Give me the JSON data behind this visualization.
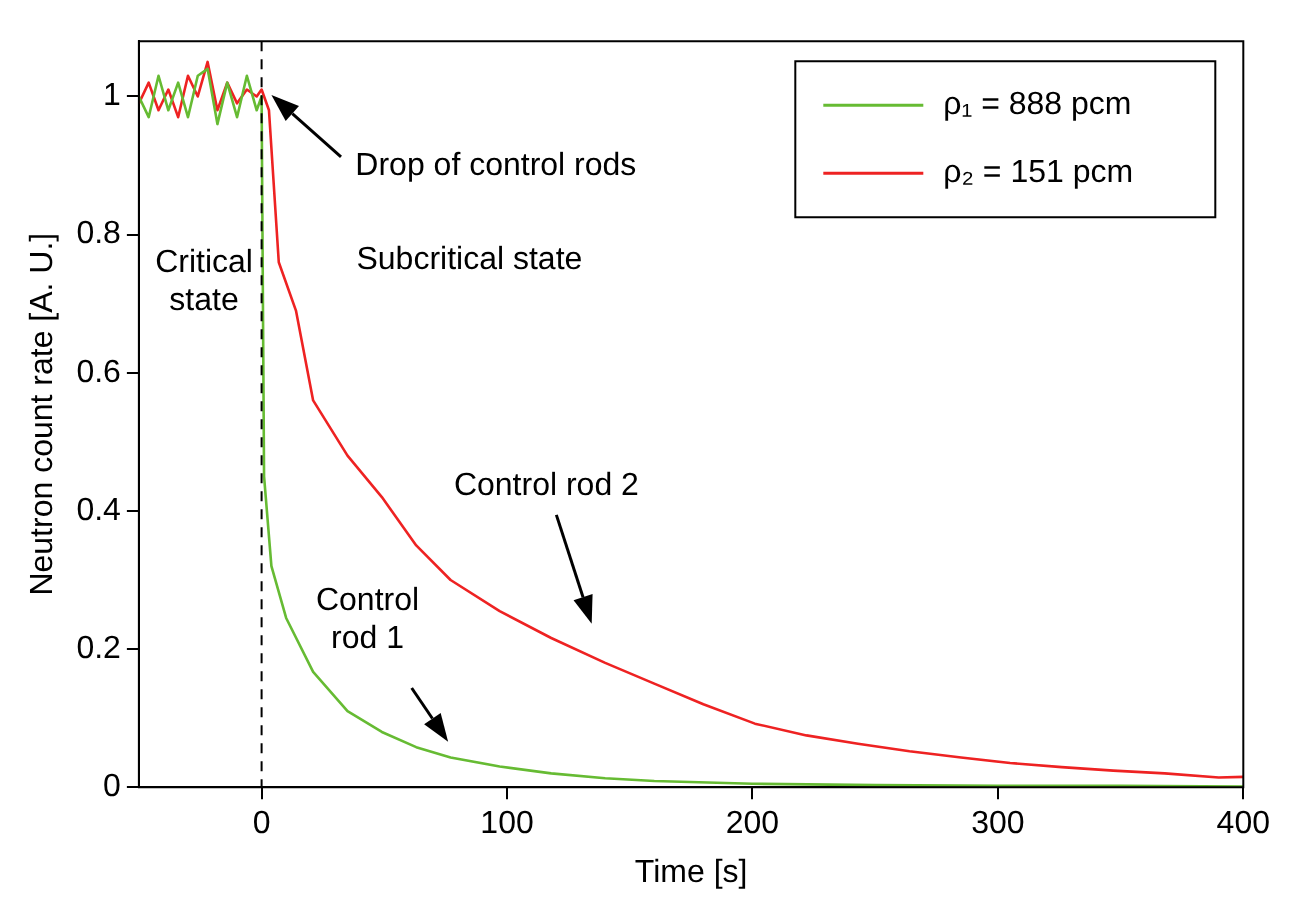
{
  "chart_data": {
    "type": "line",
    "xlabel": "Time [s]",
    "ylabel": "Neutron count rate [A. U.]",
    "xlim": [
      -50,
      400
    ],
    "xticks": [
      0,
      100,
      200,
      300,
      400
    ],
    "ylim": [
      0,
      1.08
    ],
    "yticks": [
      0,
      0.2,
      0.4,
      0.6,
      0.8,
      1
    ],
    "grid": false,
    "legend": "top right",
    "marker": "none",
    "line_style": "solid",
    "ref_lines": [
      {
        "axis": "x",
        "value": 0,
        "color": "#000000",
        "line_style": "dashed"
      }
    ],
    "annotations": [
      "Drop of control rods",
      "Subcritical state",
      "Critical state",
      "Control rod 2",
      "Control rod 1"
    ],
    "series": [
      {
        "name": "ρ₁ = 888 pcm",
        "color": "#66bb33",
        "x": [
          -50,
          -46,
          -42,
          -38,
          -34,
          -30,
          -26,
          -22,
          -18,
          -14,
          -10,
          -6,
          -2,
          0,
          1,
          4,
          10,
          21,
          35,
          49,
          63,
          77,
          97,
          118,
          140,
          160,
          200,
          250,
          300,
          350,
          400
        ],
        "values": [
          1.0,
          0.97,
          1.03,
          0.98,
          1.02,
          0.97,
          1.03,
          1.04,
          0.96,
          1.02,
          0.97,
          1.03,
          0.98,
          1.0,
          0.45,
          0.32,
          0.245,
          0.167,
          0.11,
          0.08,
          0.058,
          0.043,
          0.03,
          0.02,
          0.013,
          0.009,
          0.005,
          0.003,
          0.002,
          0.002,
          0.001
        ]
      },
      {
        "name": "ρ₂ = 151 pcm",
        "color": "#ee2222",
        "x": [
          -50,
          -46,
          -42,
          -38,
          -34,
          -30,
          -26,
          -22,
          -18,
          -14,
          -10,
          -6,
          -2,
          0,
          3,
          7,
          14,
          21,
          35,
          49,
          63,
          77,
          97,
          118,
          140,
          160,
          180,
          201,
          222,
          243,
          264,
          285,
          305,
          326,
          347,
          368,
          390,
          400
        ],
        "values": [
          0.99,
          1.02,
          0.98,
          1.01,
          0.97,
          1.03,
          1.0,
          1.05,
          0.98,
          1.02,
          0.99,
          1.01,
          1.0,
          1.01,
          0.98,
          0.76,
          0.69,
          0.56,
          0.48,
          0.42,
          0.35,
          0.3,
          0.255,
          0.216,
          0.18,
          0.15,
          0.12,
          0.092,
          0.075,
          0.063,
          0.052,
          0.043,
          0.035,
          0.029,
          0.024,
          0.02,
          0.014,
          0.015
        ]
      }
    ]
  }
}
